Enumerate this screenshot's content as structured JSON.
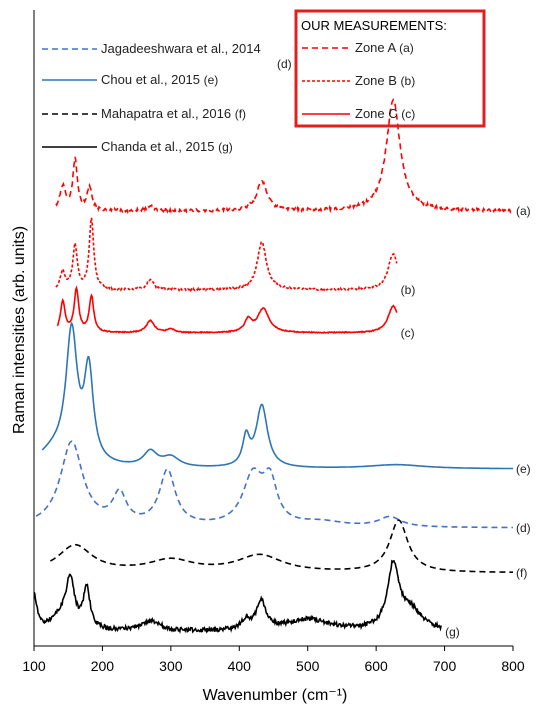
{
  "chart_data": {
    "type": "line",
    "xlabel": "Wavenumber (cm⁻¹)",
    "ylabel": "Raman intensities (arb. units)",
    "xlim": [
      100,
      800
    ],
    "xticks": [
      "100",
      "200",
      "300",
      "400",
      "500",
      "600",
      "700",
      "800"
    ],
    "grid": false,
    "legend_position": "top",
    "box_title": "OUR MEASUREMENTS:",
    "legend_left": [
      {
        "label": "Jagadeeshwara et al., 2014",
        "tag": "(d)",
        "color": "#4472c4",
        "dash": "dashed"
      },
      {
        "label": "Chou et al., 2015",
        "tag": "(e)",
        "color": "#2e75b6",
        "dash": "solid"
      },
      {
        "label": "Mahapatra et al., 2016",
        "tag": "(f)",
        "color": "#000000",
        "dash": "dashed"
      },
      {
        "label": "Chanda et al., 2015",
        "tag": "(g)",
        "color": "#000000",
        "dash": "solid"
      }
    ],
    "legend_right": [
      {
        "label": "Zone A",
        "tag": "(a)",
        "color": "#ff0000",
        "dash": "dashed"
      },
      {
        "label": "Zone B",
        "tag": "(b)",
        "color": "#ff0000",
        "dash": "dotted"
      },
      {
        "label": "Zone C",
        "tag": "(c)",
        "color": "#ff0000",
        "dash": "solid"
      }
    ],
    "series": [
      {
        "tag": "(a)",
        "color": "#ff0000",
        "dash": "dashed",
        "x_range": [
          132,
          800
        ],
        "baseline": 211,
        "noise": 1.5,
        "peaks": [
          [
            142,
            24,
            5
          ],
          [
            160,
            50,
            4
          ],
          [
            181,
            24,
            4
          ],
          [
            270,
            4,
            8
          ],
          [
            433,
            30,
            9
          ],
          [
            625,
            112,
            12
          ]
        ]
      },
      {
        "tag": "(b)",
        "color": "#ff0000",
        "dash": "dotted",
        "x_range": [
          132,
          630
        ],
        "baseline": 290,
        "noise": 1.0,
        "peaks": [
          [
            142,
            18,
            4
          ],
          [
            160,
            44,
            4
          ],
          [
            184,
            70,
            4
          ],
          [
            270,
            10,
            6
          ],
          [
            433,
            48,
            8
          ],
          [
            625,
            36,
            9
          ]
        ]
      },
      {
        "tag": "(c)",
        "color": "#ff0000",
        "dash": "solid",
        "x_range": [
          134,
          630
        ],
        "baseline": 333,
        "noise": 0.5,
        "peaks": [
          [
            142,
            31,
            4
          ],
          [
            162,
            43,
            4
          ],
          [
            184,
            36,
            4
          ],
          [
            270,
            12,
            7
          ],
          [
            300,
            4,
            6
          ],
          [
            413,
            12,
            6
          ],
          [
            435,
            24,
            10
          ],
          [
            625,
            27,
            9
          ]
        ]
      },
      {
        "tag": "(e)",
        "color": "#2e75b6",
        "dash": "solid",
        "x_range": [
          112,
          800
        ],
        "baseline": 469,
        "noise": 0,
        "peaks": [
          [
            155,
            128,
            10
          ],
          [
            180,
            90,
            8
          ],
          [
            130,
            15,
            30
          ],
          [
            270,
            15,
            12
          ],
          [
            300,
            10,
            15
          ],
          [
            410,
            28,
            6
          ],
          [
            433,
            62,
            10
          ],
          [
            630,
            4,
            50
          ]
        ]
      },
      {
        "tag": "(d)",
        "color": "#4472c4",
        "dash": "dashed",
        "x_range": [
          103,
          800
        ],
        "baseline": 528,
        "noise": 0,
        "peaks": [
          [
            155,
            85,
            20
          ],
          [
            225,
            30,
            12
          ],
          [
            295,
            55,
            14
          ],
          [
            420,
            50,
            18
          ],
          [
            445,
            40,
            12
          ],
          [
            620,
            10,
            20
          ],
          [
            520,
            5,
            40
          ]
        ]
      },
      {
        "tag": "(f)",
        "color": "#000000",
        "dash": "dashed",
        "x_range": [
          124,
          800
        ],
        "baseline": 573,
        "noise": 0,
        "peaks": [
          [
            160,
            27,
            30
          ],
          [
            300,
            12,
            40
          ],
          [
            430,
            17,
            40
          ],
          [
            633,
            52,
            16
          ]
        ]
      },
      {
        "tag": "(g)",
        "color": "#000000",
        "dash": "solid",
        "x_range": [
          100,
          695
        ],
        "baseline": 632,
        "noise": 2.2,
        "peaks": [
          [
            100,
            35,
            5
          ],
          [
            153,
            46,
            7
          ],
          [
            177,
            40,
            6
          ],
          [
            140,
            15,
            18
          ],
          [
            270,
            10,
            18
          ],
          [
            410,
            10,
            8
          ],
          [
            432,
            28,
            8
          ],
          [
            500,
            12,
            40
          ],
          [
            625,
            63,
            10
          ],
          [
            650,
            20,
            20
          ]
        ]
      }
    ]
  }
}
